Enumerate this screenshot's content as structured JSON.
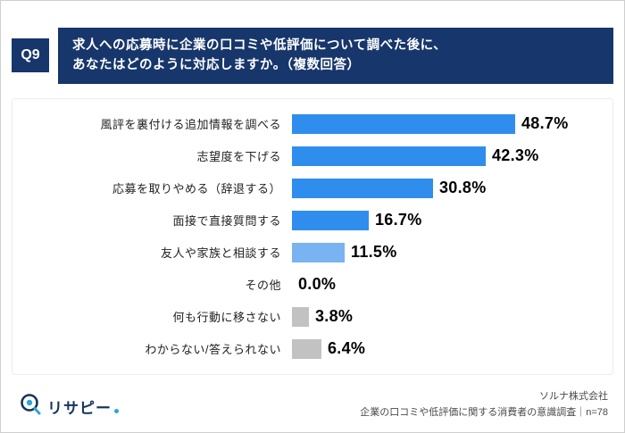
{
  "q_label": "Q9",
  "header": {
    "line1": "求人への応募時に企業の口コミや低評価について調べた後に、",
    "line2": "あなたはどのように対応しますか。（複数回答）"
  },
  "chart_data": {
    "type": "bar",
    "orientation": "horizontal",
    "unit": "%",
    "xlim": [
      0,
      55
    ],
    "categories": [
      "風評を裏付ける追加情報を調べる",
      "志望度を下げる",
      "応募を取りやめる（辞退する）",
      "面接で直接質問する",
      "友人や家族と相談する",
      "その他",
      "何も行動に移さない",
      "わからない/答えられない"
    ],
    "values": [
      48.7,
      42.3,
      30.8,
      16.7,
      11.5,
      0.0,
      3.8,
      6.4
    ],
    "value_labels": [
      "48.7%",
      "42.3%",
      "30.8%",
      "16.7%",
      "11.5%",
      "0.0%",
      "3.8%",
      "6.4%"
    ],
    "bar_colors": [
      "#2f8ded",
      "#2f8ded",
      "#2f8ded",
      "#2f8ded",
      "#79b3f2",
      "#79b3f2",
      "#c2c2c2",
      "#c2c2c2"
    ],
    "title": "",
    "xlabel": "",
    "ylabel": "",
    "legend": false,
    "grid": false
  },
  "footer": {
    "logo_text": "リサピー",
    "company": "ソルナ株式会社",
    "survey": "企業の口コミや低評価に関する消費者の意識調査｜n=78"
  },
  "colors": {
    "header_navy": "#17366b",
    "bar_blue": "#2f8ded",
    "bar_light_blue": "#79b3f2",
    "bar_gray": "#c2c2c2",
    "logo_teal": "#2aa7d8"
  }
}
